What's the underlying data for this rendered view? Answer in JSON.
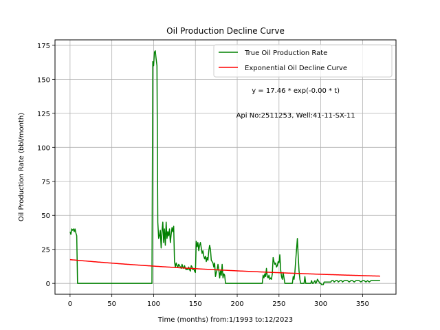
{
  "chart_data": {
    "type": "line",
    "title": "Oil Production Decline Curve",
    "xlabel": "Time (months) from:1/1993 to:12/2023",
    "ylabel": "Oil Production Rate (bbl/month)",
    "xlim": [
      -18,
      390
    ],
    "ylim": [
      -8,
      179
    ],
    "xticks": [
      0,
      50,
      100,
      150,
      200,
      250,
      300,
      350
    ],
    "yticks": [
      0,
      25,
      50,
      75,
      100,
      125,
      150,
      175
    ],
    "grid": true,
    "legend": {
      "placement": "top-right"
    },
    "annotations": [
      {
        "text": "y = 17.46 * exp(-0.00 * t)",
        "x": 270,
        "y": 140
      },
      {
        "text": "Api No:2511253, Well:41-11-SX-11",
        "x": 270,
        "y": 122
      }
    ],
    "series": [
      {
        "name": "True Oil Production Rate",
        "color": "#008000",
        "points": [
          [
            0,
            38
          ],
          [
            1,
            36
          ],
          [
            2,
            40
          ],
          [
            3,
            39
          ],
          [
            4,
            40
          ],
          [
            5,
            38
          ],
          [
            6,
            40
          ],
          [
            7,
            37
          ],
          [
            8,
            35
          ],
          [
            9,
            0
          ],
          [
            98,
            0
          ],
          [
            99,
            163
          ],
          [
            100,
            160
          ],
          [
            101,
            170
          ],
          [
            102,
            171
          ],
          [
            103,
            165
          ],
          [
            104,
            160
          ],
          [
            105,
            45
          ],
          [
            106,
            33
          ],
          [
            107,
            35
          ],
          [
            108,
            39
          ],
          [
            109,
            26
          ],
          [
            110,
            38
          ],
          [
            111,
            45
          ],
          [
            112,
            30
          ],
          [
            113,
            40
          ],
          [
            114,
            28
          ],
          [
            115,
            45
          ],
          [
            116,
            33
          ],
          [
            117,
            38
          ],
          [
            118,
            35
          ],
          [
            119,
            40
          ],
          [
            120,
            30
          ],
          [
            121,
            36
          ],
          [
            122,
            41
          ],
          [
            123,
            38
          ],
          [
            124,
            42
          ],
          [
            125,
            16
          ],
          [
            126,
            12
          ],
          [
            127,
            15
          ],
          [
            128,
            13
          ],
          [
            129,
            12
          ],
          [
            130,
            14
          ],
          [
            131,
            13
          ],
          [
            132,
            12
          ],
          [
            133,
            11
          ],
          [
            134,
            14
          ],
          [
            135,
            12
          ],
          [
            136,
            11
          ],
          [
            137,
            13
          ],
          [
            138,
            11
          ],
          [
            139,
            10
          ],
          [
            140,
            11
          ],
          [
            141,
            10
          ],
          [
            142,
            12
          ],
          [
            143,
            10
          ],
          [
            144,
            9
          ],
          [
            145,
            13
          ],
          [
            146,
            12
          ],
          [
            147,
            10
          ],
          [
            148,
            11
          ],
          [
            149,
            9
          ],
          [
            150,
            8
          ],
          [
            151,
            31
          ],
          [
            152,
            27
          ],
          [
            153,
            30
          ],
          [
            154,
            24
          ],
          [
            155,
            28
          ],
          [
            156,
            30
          ],
          [
            157,
            26
          ],
          [
            158,
            22
          ],
          [
            159,
            24
          ],
          [
            160,
            20
          ],
          [
            161,
            18
          ],
          [
            162,
            20
          ],
          [
            163,
            16
          ],
          [
            164,
            19
          ],
          [
            165,
            17
          ],
          [
            166,
            24
          ],
          [
            167,
            28
          ],
          [
            168,
            25
          ],
          [
            169,
            17
          ],
          [
            170,
            16
          ],
          [
            171,
            15
          ],
          [
            172,
            12
          ],
          [
            173,
            15
          ],
          [
            174,
            5
          ],
          [
            175,
            8
          ],
          [
            176,
            10
          ],
          [
            177,
            14
          ],
          [
            178,
            10
          ],
          [
            179,
            4
          ],
          [
            180,
            9
          ],
          [
            181,
            6
          ],
          [
            182,
            14
          ],
          [
            183,
            4
          ],
          [
            184,
            7
          ],
          [
            185,
            6
          ],
          [
            186,
            0
          ],
          [
            230,
            0
          ],
          [
            231,
            6
          ],
          [
            232,
            4
          ],
          [
            233,
            7
          ],
          [
            234,
            5
          ],
          [
            235,
            11
          ],
          [
            236,
            5
          ],
          [
            237,
            4
          ],
          [
            238,
            6
          ],
          [
            239,
            3
          ],
          [
            240,
            4
          ],
          [
            241,
            3
          ],
          [
            242,
            7
          ],
          [
            243,
            19
          ],
          [
            244,
            16
          ],
          [
            245,
            14
          ],
          [
            246,
            15
          ],
          [
            247,
            12
          ],
          [
            248,
            13
          ],
          [
            249,
            16
          ],
          [
            250,
            15
          ],
          [
            251,
            21
          ],
          [
            252,
            10
          ],
          [
            253,
            5
          ],
          [
            254,
            3
          ],
          [
            255,
            8
          ],
          [
            256,
            4
          ],
          [
            257,
            0
          ],
          [
            266,
            0
          ],
          [
            267,
            5
          ],
          [
            268,
            3
          ],
          [
            269,
            8
          ],
          [
            270,
            17
          ],
          [
            271,
            25
          ],
          [
            272,
            33
          ],
          [
            273,
            20
          ],
          [
            274,
            9
          ],
          [
            275,
            3
          ],
          [
            276,
            0
          ],
          [
            280,
            0
          ],
          [
            281,
            5
          ],
          [
            282,
            0
          ],
          [
            288,
            0
          ],
          [
            289,
            2
          ],
          [
            290,
            0
          ],
          [
            291,
            0
          ],
          [
            292,
            1
          ],
          [
            293,
            2
          ],
          [
            294,
            0
          ],
          [
            295,
            1
          ],
          [
            296,
            3
          ],
          [
            297,
            2
          ],
          [
            298,
            1
          ],
          [
            299,
            0
          ],
          [
            300,
            0
          ],
          [
            301,
            -1
          ],
          [
            303,
            -1
          ],
          [
            304,
            1
          ],
          [
            306,
            1
          ],
          [
            308,
            1
          ],
          [
            310,
            1
          ],
          [
            312,
            1
          ],
          [
            313,
            2
          ],
          [
            315,
            2
          ],
          [
            316,
            1
          ],
          [
            318,
            2
          ],
          [
            320,
            2
          ],
          [
            321,
            1
          ],
          [
            323,
            2
          ],
          [
            325,
            2
          ],
          [
            326,
            1
          ],
          [
            328,
            2
          ],
          [
            330,
            2
          ],
          [
            332,
            2
          ],
          [
            334,
            1
          ],
          [
            336,
            2
          ],
          [
            338,
            2
          ],
          [
            340,
            1
          ],
          [
            342,
            2
          ],
          [
            344,
            2
          ],
          [
            346,
            2
          ],
          [
            348,
            1
          ],
          [
            350,
            2
          ],
          [
            352,
            2
          ],
          [
            354,
            1
          ],
          [
            356,
            2
          ],
          [
            358,
            1
          ],
          [
            360,
            2
          ],
          [
            362,
            2
          ],
          [
            364,
            2
          ],
          [
            366,
            2
          ],
          [
            368,
            2
          ],
          [
            370,
            2
          ],
          [
            371,
            2
          ]
        ]
      },
      {
        "name": "Exponential Oil Decline Curve",
        "color": "#ff0000",
        "equation": {
          "a": 17.46,
          "b": 0.0032
        },
        "x_range": [
          0,
          371
        ]
      }
    ]
  }
}
